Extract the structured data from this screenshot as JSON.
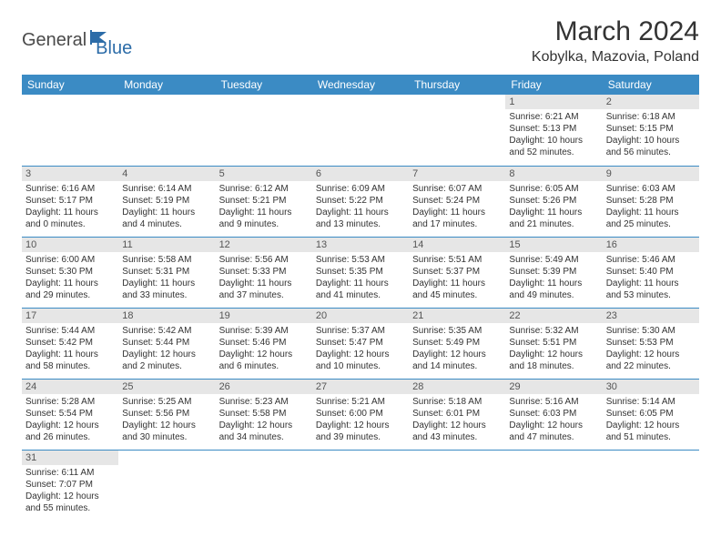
{
  "logo": {
    "text1": "General",
    "text2": "Blue"
  },
  "title": "March 2024",
  "location": "Kobylka, Mazovia, Poland",
  "colors": {
    "header_bg": "#3b8bc4",
    "header_text": "#ffffff",
    "daynum_bg": "#e6e6e6",
    "border": "#3b8bc4",
    "logo_blue": "#2c6ca8",
    "body_text": "#333333"
  },
  "weekdays": [
    "Sunday",
    "Monday",
    "Tuesday",
    "Wednesday",
    "Thursday",
    "Friday",
    "Saturday"
  ],
  "weeks": [
    [
      null,
      null,
      null,
      null,
      null,
      {
        "n": "1",
        "sr": "Sunrise: 6:21 AM",
        "ss": "Sunset: 5:13 PM",
        "d1": "Daylight: 10 hours",
        "d2": "and 52 minutes."
      },
      {
        "n": "2",
        "sr": "Sunrise: 6:18 AM",
        "ss": "Sunset: 5:15 PM",
        "d1": "Daylight: 10 hours",
        "d2": "and 56 minutes."
      }
    ],
    [
      {
        "n": "3",
        "sr": "Sunrise: 6:16 AM",
        "ss": "Sunset: 5:17 PM",
        "d1": "Daylight: 11 hours",
        "d2": "and 0 minutes."
      },
      {
        "n": "4",
        "sr": "Sunrise: 6:14 AM",
        "ss": "Sunset: 5:19 PM",
        "d1": "Daylight: 11 hours",
        "d2": "and 4 minutes."
      },
      {
        "n": "5",
        "sr": "Sunrise: 6:12 AM",
        "ss": "Sunset: 5:21 PM",
        "d1": "Daylight: 11 hours",
        "d2": "and 9 minutes."
      },
      {
        "n": "6",
        "sr": "Sunrise: 6:09 AM",
        "ss": "Sunset: 5:22 PM",
        "d1": "Daylight: 11 hours",
        "d2": "and 13 minutes."
      },
      {
        "n": "7",
        "sr": "Sunrise: 6:07 AM",
        "ss": "Sunset: 5:24 PM",
        "d1": "Daylight: 11 hours",
        "d2": "and 17 minutes."
      },
      {
        "n": "8",
        "sr": "Sunrise: 6:05 AM",
        "ss": "Sunset: 5:26 PM",
        "d1": "Daylight: 11 hours",
        "d2": "and 21 minutes."
      },
      {
        "n": "9",
        "sr": "Sunrise: 6:03 AM",
        "ss": "Sunset: 5:28 PM",
        "d1": "Daylight: 11 hours",
        "d2": "and 25 minutes."
      }
    ],
    [
      {
        "n": "10",
        "sr": "Sunrise: 6:00 AM",
        "ss": "Sunset: 5:30 PM",
        "d1": "Daylight: 11 hours",
        "d2": "and 29 minutes."
      },
      {
        "n": "11",
        "sr": "Sunrise: 5:58 AM",
        "ss": "Sunset: 5:31 PM",
        "d1": "Daylight: 11 hours",
        "d2": "and 33 minutes."
      },
      {
        "n": "12",
        "sr": "Sunrise: 5:56 AM",
        "ss": "Sunset: 5:33 PM",
        "d1": "Daylight: 11 hours",
        "d2": "and 37 minutes."
      },
      {
        "n": "13",
        "sr": "Sunrise: 5:53 AM",
        "ss": "Sunset: 5:35 PM",
        "d1": "Daylight: 11 hours",
        "d2": "and 41 minutes."
      },
      {
        "n": "14",
        "sr": "Sunrise: 5:51 AM",
        "ss": "Sunset: 5:37 PM",
        "d1": "Daylight: 11 hours",
        "d2": "and 45 minutes."
      },
      {
        "n": "15",
        "sr": "Sunrise: 5:49 AM",
        "ss": "Sunset: 5:39 PM",
        "d1": "Daylight: 11 hours",
        "d2": "and 49 minutes."
      },
      {
        "n": "16",
        "sr": "Sunrise: 5:46 AM",
        "ss": "Sunset: 5:40 PM",
        "d1": "Daylight: 11 hours",
        "d2": "and 53 minutes."
      }
    ],
    [
      {
        "n": "17",
        "sr": "Sunrise: 5:44 AM",
        "ss": "Sunset: 5:42 PM",
        "d1": "Daylight: 11 hours",
        "d2": "and 58 minutes."
      },
      {
        "n": "18",
        "sr": "Sunrise: 5:42 AM",
        "ss": "Sunset: 5:44 PM",
        "d1": "Daylight: 12 hours",
        "d2": "and 2 minutes."
      },
      {
        "n": "19",
        "sr": "Sunrise: 5:39 AM",
        "ss": "Sunset: 5:46 PM",
        "d1": "Daylight: 12 hours",
        "d2": "and 6 minutes."
      },
      {
        "n": "20",
        "sr": "Sunrise: 5:37 AM",
        "ss": "Sunset: 5:47 PM",
        "d1": "Daylight: 12 hours",
        "d2": "and 10 minutes."
      },
      {
        "n": "21",
        "sr": "Sunrise: 5:35 AM",
        "ss": "Sunset: 5:49 PM",
        "d1": "Daylight: 12 hours",
        "d2": "and 14 minutes."
      },
      {
        "n": "22",
        "sr": "Sunrise: 5:32 AM",
        "ss": "Sunset: 5:51 PM",
        "d1": "Daylight: 12 hours",
        "d2": "and 18 minutes."
      },
      {
        "n": "23",
        "sr": "Sunrise: 5:30 AM",
        "ss": "Sunset: 5:53 PM",
        "d1": "Daylight: 12 hours",
        "d2": "and 22 minutes."
      }
    ],
    [
      {
        "n": "24",
        "sr": "Sunrise: 5:28 AM",
        "ss": "Sunset: 5:54 PM",
        "d1": "Daylight: 12 hours",
        "d2": "and 26 minutes."
      },
      {
        "n": "25",
        "sr": "Sunrise: 5:25 AM",
        "ss": "Sunset: 5:56 PM",
        "d1": "Daylight: 12 hours",
        "d2": "and 30 minutes."
      },
      {
        "n": "26",
        "sr": "Sunrise: 5:23 AM",
        "ss": "Sunset: 5:58 PM",
        "d1": "Daylight: 12 hours",
        "d2": "and 34 minutes."
      },
      {
        "n": "27",
        "sr": "Sunrise: 5:21 AM",
        "ss": "Sunset: 6:00 PM",
        "d1": "Daylight: 12 hours",
        "d2": "and 39 minutes."
      },
      {
        "n": "28",
        "sr": "Sunrise: 5:18 AM",
        "ss": "Sunset: 6:01 PM",
        "d1": "Daylight: 12 hours",
        "d2": "and 43 minutes."
      },
      {
        "n": "29",
        "sr": "Sunrise: 5:16 AM",
        "ss": "Sunset: 6:03 PM",
        "d1": "Daylight: 12 hours",
        "d2": "and 47 minutes."
      },
      {
        "n": "30",
        "sr": "Sunrise: 5:14 AM",
        "ss": "Sunset: 6:05 PM",
        "d1": "Daylight: 12 hours",
        "d2": "and 51 minutes."
      }
    ],
    [
      {
        "n": "31",
        "sr": "Sunrise: 6:11 AM",
        "ss": "Sunset: 7:07 PM",
        "d1": "Daylight: 12 hours",
        "d2": "and 55 minutes."
      },
      null,
      null,
      null,
      null,
      null,
      null
    ]
  ]
}
